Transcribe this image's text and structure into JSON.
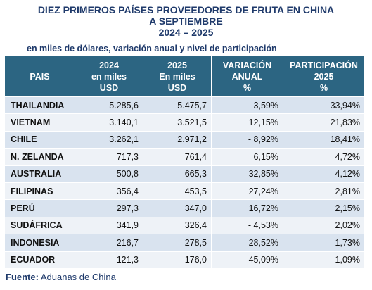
{
  "title": {
    "line1": "DIEZ PRIMEROS PAÍSES PROVEEDORES DE FRUTA EN CHINA",
    "line2": "A SEPTIEMBRE",
    "line3": "2024 – 2025"
  },
  "subtitle": "en miles de dólares, variación anual y nivel de participación",
  "table": {
    "headers": [
      {
        "l1": "PAIS",
        "l2": "",
        "l3": ""
      },
      {
        "l1": "2024",
        "l2": "en miles",
        "l3": "USD"
      },
      {
        "l1": "2025",
        "l2": "En miles",
        "l3": "USD"
      },
      {
        "l1": "VARIACIÓN",
        "l2": "ANUAL",
        "l3": "%"
      },
      {
        "l1": "PARTICIPACIÓN",
        "l2": "2025",
        "l3": "%"
      }
    ],
    "rows": [
      {
        "country": "THAILANDIA",
        "y2024": "5.285,6",
        "y2025": "5.475,7",
        "var": "3,59%",
        "share": "33,94%"
      },
      {
        "country": "VIETNAM",
        "y2024": "3.140,1",
        "y2025": "3.521,5",
        "var": "12,15%",
        "share": "21,83%"
      },
      {
        "country": "CHILE",
        "y2024": "3.262,1",
        "y2025": "2.971,2",
        "var": "- 8,92%",
        "share": "18,41%"
      },
      {
        "country": "N. ZELANDA",
        "y2024": "717,3",
        "y2025": "761,4",
        "var": "6,15%",
        "share": "4,72%"
      },
      {
        "country": "AUSTRALIA",
        "y2024": "500,8",
        "y2025": "665,3",
        "var": "32,85%",
        "share": "4,12%"
      },
      {
        "country": "FILIPINAS",
        "y2024": "356,4",
        "y2025": "453,5",
        "var": "27,24%",
        "share": "2,81%"
      },
      {
        "country": "PERÚ",
        "y2024": "297,3",
        "y2025": "347,0",
        "var": "16,72%",
        "share": "2,15%"
      },
      {
        "country": "SUDÁFRICA",
        "y2024": "341,9",
        "y2025": "326,4",
        "var": "- 4,53%",
        "share": "2,02%"
      },
      {
        "country": "INDONESIA",
        "y2024": "216,7",
        "y2025": "278,5",
        "var": "28,52%",
        "share": "1,73%"
      },
      {
        "country": "ECUADOR",
        "y2024": "121,3",
        "y2025": "176,0",
        "var": "45,09%",
        "share": "1,09%"
      }
    ]
  },
  "source": {
    "label": "Fuente:",
    "value": "Aduanas de China"
  },
  "colors": {
    "header_bg": "#2c6582",
    "title_text": "#1f3a6b",
    "row_odd": "#d9e3ef",
    "row_even": "#eef2f7"
  }
}
